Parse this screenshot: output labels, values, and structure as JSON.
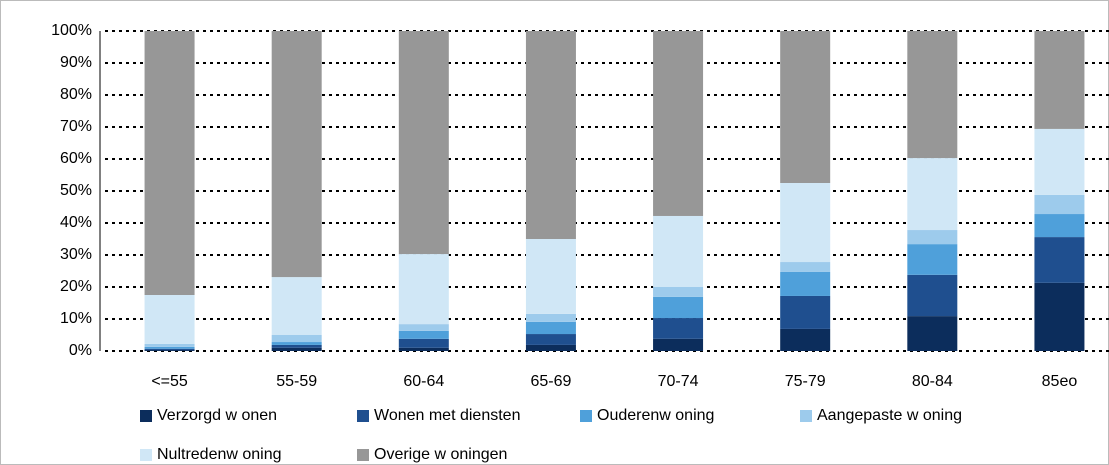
{
  "chart_data": {
    "type": "stacked_bar",
    "categories": [
      "<=55",
      "55-59",
      "60-64",
      "65-69",
      "70-74",
      "75-79",
      "80-84",
      "85eo"
    ],
    "series": [
      {
        "name": "Verzorgd w onen",
        "color": "#0c2d5c",
        "values": [
          0.3,
          1.0,
          1.0,
          1.9,
          3.8,
          6.9,
          10.9,
          21.3
        ]
      },
      {
        "name": "Wonen met diensten",
        "color": "#1f4f8f",
        "values": [
          0.4,
          0.9,
          2.8,
          3.4,
          6.5,
          10.3,
          12.9,
          14.3
        ]
      },
      {
        "name": "Ouderenw oning",
        "color": "#4fa0da",
        "values": [
          0.6,
          0.9,
          2.5,
          3.8,
          6.6,
          7.5,
          9.6,
          7.2
        ]
      },
      {
        "name": "Aangepaste w oning",
        "color": "#9dcbec",
        "values": [
          0.9,
          2.2,
          2.1,
          2.5,
          3.1,
          3.1,
          4.4,
          6.0
        ]
      },
      {
        "name": "Nultredenw oning",
        "color": "#d0e7f6",
        "values": [
          15.3,
          18.1,
          21.9,
          23.4,
          22.2,
          24.7,
          22.5,
          20.6
        ]
      },
      {
        "name": "Overige w oningen",
        "color": "#979797",
        "values": [
          82.5,
          76.9,
          69.7,
          65.0,
          57.8,
          47.5,
          39.7,
          30.6
        ]
      }
    ],
    "ylim": [
      0,
      100
    ],
    "yticks": [
      {
        "value": 0,
        "label": "0%"
      },
      {
        "value": 10,
        "label": "10%"
      },
      {
        "value": 20,
        "label": "20%"
      },
      {
        "value": 30,
        "label": "30%"
      },
      {
        "value": 40,
        "label": "40%"
      },
      {
        "value": 50,
        "label": "50%"
      },
      {
        "value": 60,
        "label": "60%"
      },
      {
        "value": 70,
        "label": "70%"
      },
      {
        "value": 80,
        "label": "80%"
      },
      {
        "value": 90,
        "label": "90%"
      },
      {
        "value": 100,
        "label": "100%"
      }
    ],
    "grid": true
  }
}
